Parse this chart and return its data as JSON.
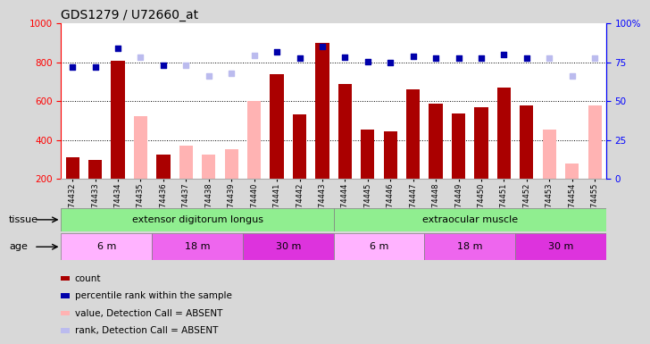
{
  "title": "GDS1279 / U72660_at",
  "samples": [
    "GSM74432",
    "GSM74433",
    "GSM74434",
    "GSM74435",
    "GSM74436",
    "GSM74437",
    "GSM74438",
    "GSM74439",
    "GSM74440",
    "GSM74441",
    "GSM74442",
    "GSM74443",
    "GSM74444",
    "GSM74445",
    "GSM74446",
    "GSM74447",
    "GSM74448",
    "GSM74449",
    "GSM74450",
    "GSM74451",
    "GSM74452",
    "GSM74453",
    "GSM74454",
    "GSM74455"
  ],
  "count_present": [
    310,
    300,
    810,
    null,
    325,
    null,
    null,
    null,
    null,
    740,
    530,
    900,
    690,
    455,
    445,
    660,
    585,
    535,
    570,
    670,
    580,
    null,
    null,
    null
  ],
  "count_absent": [
    null,
    null,
    null,
    525,
    null,
    370,
    325,
    355,
    600,
    null,
    null,
    null,
    null,
    null,
    null,
    null,
    null,
    null,
    null,
    null,
    null,
    455,
    280,
    580
  ],
  "rank_present": [
    775,
    775,
    870,
    null,
    785,
    null,
    null,
    null,
    null,
    855,
    820,
    880,
    825,
    805,
    800,
    830,
    820,
    820,
    820,
    840,
    820,
    null,
    null,
    null
  ],
  "rank_absent": [
    null,
    null,
    null,
    825,
    null,
    785,
    730,
    745,
    835,
    null,
    null,
    null,
    null,
    null,
    null,
    null,
    null,
    null,
    null,
    null,
    null,
    820,
    730,
    820
  ],
  "ylim_left": [
    200,
    1000
  ],
  "ylim_right": [
    0,
    100
  ],
  "yticks_left": [
    200,
    400,
    600,
    800,
    1000
  ],
  "yticks_right": [
    0,
    25,
    50,
    75,
    100
  ],
  "tissue_groups": [
    {
      "label": "extensor digitorum longus",
      "start": 0,
      "end": 12,
      "color": "#90EE90"
    },
    {
      "label": "extraocular muscle",
      "start": 12,
      "end": 24,
      "color": "#90EE90"
    }
  ],
  "age_groups": [
    {
      "label": "6 m",
      "start": 0,
      "end": 4,
      "color": "#FFB3FF"
    },
    {
      "label": "18 m",
      "start": 4,
      "end": 8,
      "color": "#EE66EE"
    },
    {
      "label": "30 m",
      "start": 8,
      "end": 12,
      "color": "#DD33DD"
    },
    {
      "label": "6 m",
      "start": 12,
      "end": 16,
      "color": "#FFB3FF"
    },
    {
      "label": "18 m",
      "start": 16,
      "end": 20,
      "color": "#EE66EE"
    },
    {
      "label": "30 m",
      "start": 20,
      "end": 24,
      "color": "#DD33DD"
    }
  ],
  "color_present_bar": "#AA0000",
  "color_absent_bar": "#FFB3B3",
  "color_present_scatter": "#0000AA",
  "color_absent_scatter": "#BBBBEE",
  "bar_width": 0.6,
  "background_color": "#D8D8D8",
  "plot_bg": "#FFFFFF",
  "title_fontsize": 10,
  "legend_items": [
    {
      "color": "#AA0000",
      "label": "count"
    },
    {
      "color": "#0000AA",
      "label": "percentile rank within the sample"
    },
    {
      "color": "#FFB3B3",
      "label": "value, Detection Call = ABSENT"
    },
    {
      "color": "#BBBBEE",
      "label": "rank, Detection Call = ABSENT"
    }
  ]
}
